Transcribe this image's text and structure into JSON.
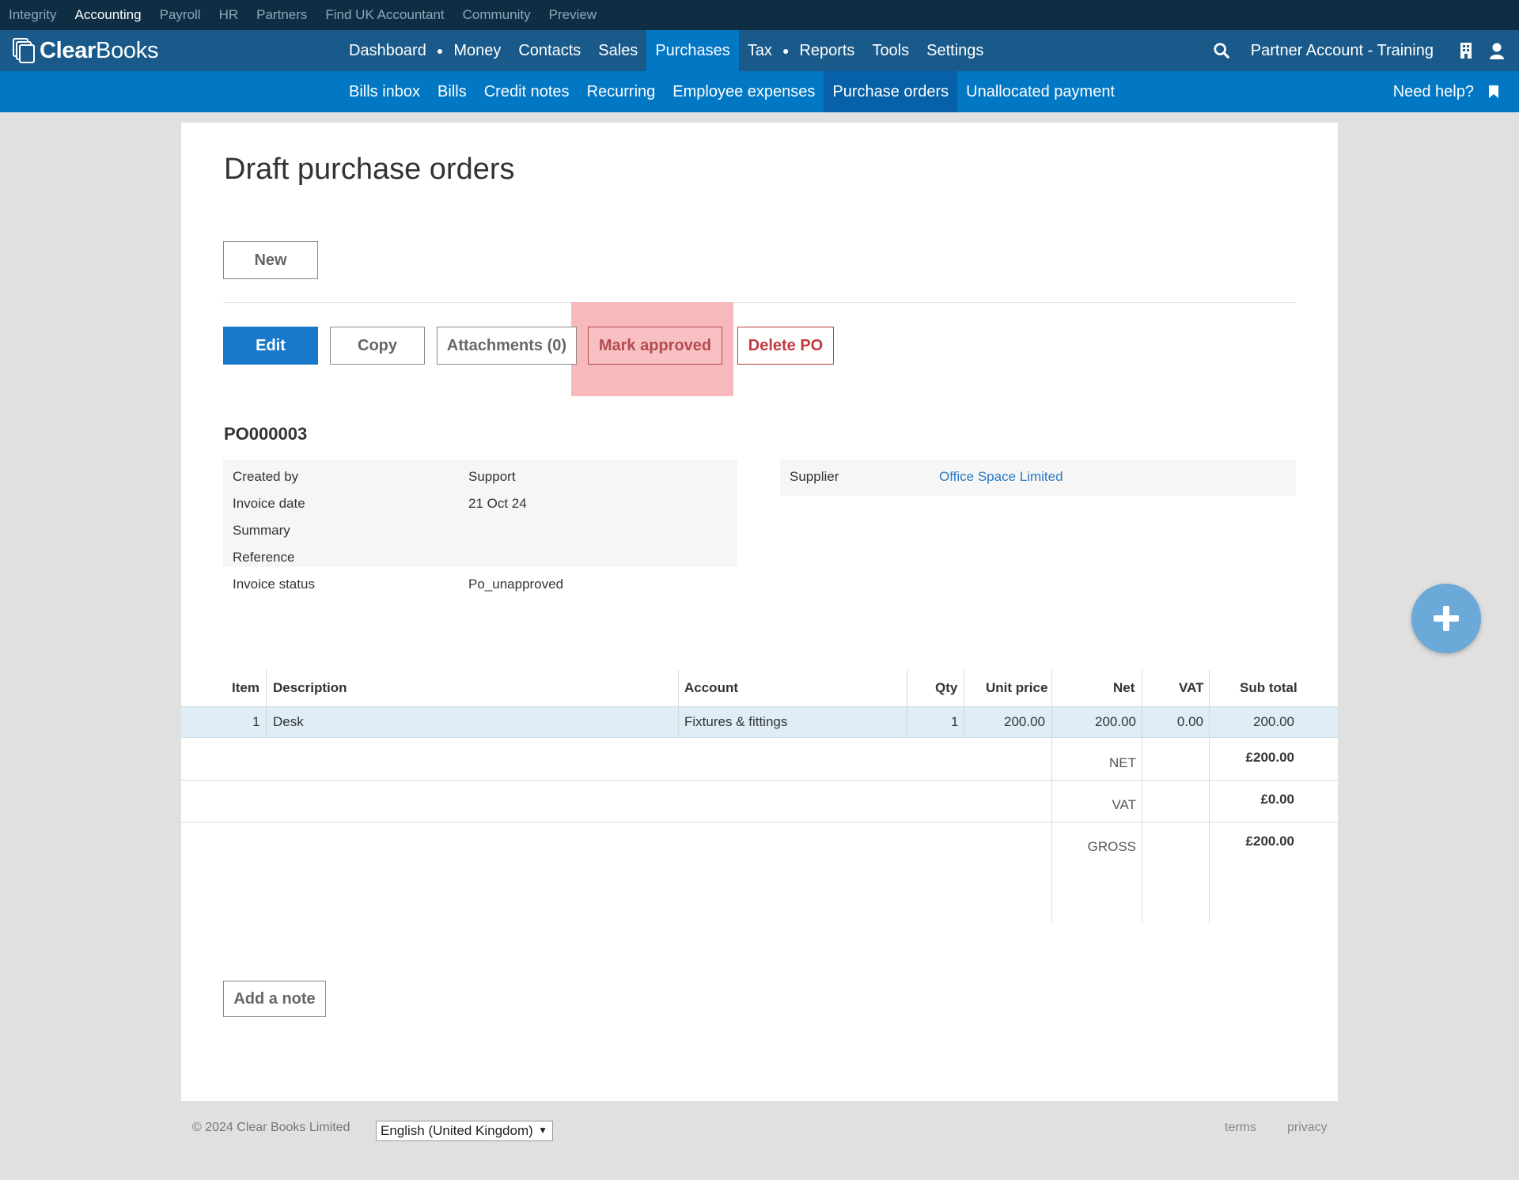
{
  "product_bar": {
    "items": [
      "Integrity",
      "Accounting",
      "Payroll",
      "HR",
      "Partners",
      "Find UK Accountant",
      "Community",
      "Preview"
    ],
    "active": "Accounting"
  },
  "brand": {
    "logo_text_bold": "Clear",
    "logo_text_rest": "Books"
  },
  "main_nav": {
    "items": [
      "Dashboard",
      "Money",
      "Contacts",
      "Sales",
      "Purchases",
      "Tax",
      "Reports",
      "Tools",
      "Settings"
    ],
    "active": "Purchases",
    "account_name": "Partner Account - Training"
  },
  "sub_nav": {
    "items": [
      "Bills inbox",
      "Bills",
      "Credit notes",
      "Recurring",
      "Employee expenses",
      "Purchase orders",
      "Unallocated payment"
    ],
    "active": "Purchase orders",
    "help": "Need help?"
  },
  "page": {
    "title": "Draft purchase orders",
    "new_button": "New",
    "actions": {
      "edit": "Edit",
      "copy": "Copy",
      "attachments": "Attachments (0)",
      "mark_approved": "Mark approved",
      "delete": "Delete PO"
    },
    "po_number": "PO000003",
    "details": [
      {
        "label": "Created by",
        "value": "Support"
      },
      {
        "label": "Invoice date",
        "value": "21 Oct 24"
      },
      {
        "label": "Summary",
        "value": ""
      },
      {
        "label": "Reference",
        "value": ""
      },
      {
        "label": "Invoice status",
        "value": "Po_unapproved"
      }
    ],
    "supplier": {
      "label": "Supplier",
      "value": "Office Space Limited"
    },
    "table": {
      "headers": {
        "item": "Item",
        "description": "Description",
        "account": "Account",
        "qty": "Qty",
        "unit_price": "Unit price",
        "net": "Net",
        "vat": "VAT",
        "sub_total": "Sub total"
      },
      "rows": [
        {
          "item": "1",
          "description": "Desk",
          "account": "Fixtures & fittings",
          "qty": "1",
          "unit_price": "200.00",
          "net": "200.00",
          "vat": "0.00",
          "sub_total": "200.00"
        }
      ],
      "totals": [
        {
          "label": "NET",
          "value": "£200.00"
        },
        {
          "label": "VAT",
          "value": "£0.00"
        },
        {
          "label": "GROSS",
          "value": "£200.00"
        }
      ]
    },
    "add_note": "Add a note"
  },
  "footer": {
    "copyright": "© 2024 Clear Books Limited",
    "language": "English (United Kingdom)",
    "terms": "terms",
    "privacy": "privacy"
  },
  "colors": {
    "product_bar": "#0f2e44",
    "main_nav": "#1a5a8a",
    "sub_nav": "#0277c4",
    "primary_button": "#1878c9",
    "danger": "#c23a3f",
    "highlight": "#f8b9bc",
    "row_highlight": "#deedf6"
  }
}
